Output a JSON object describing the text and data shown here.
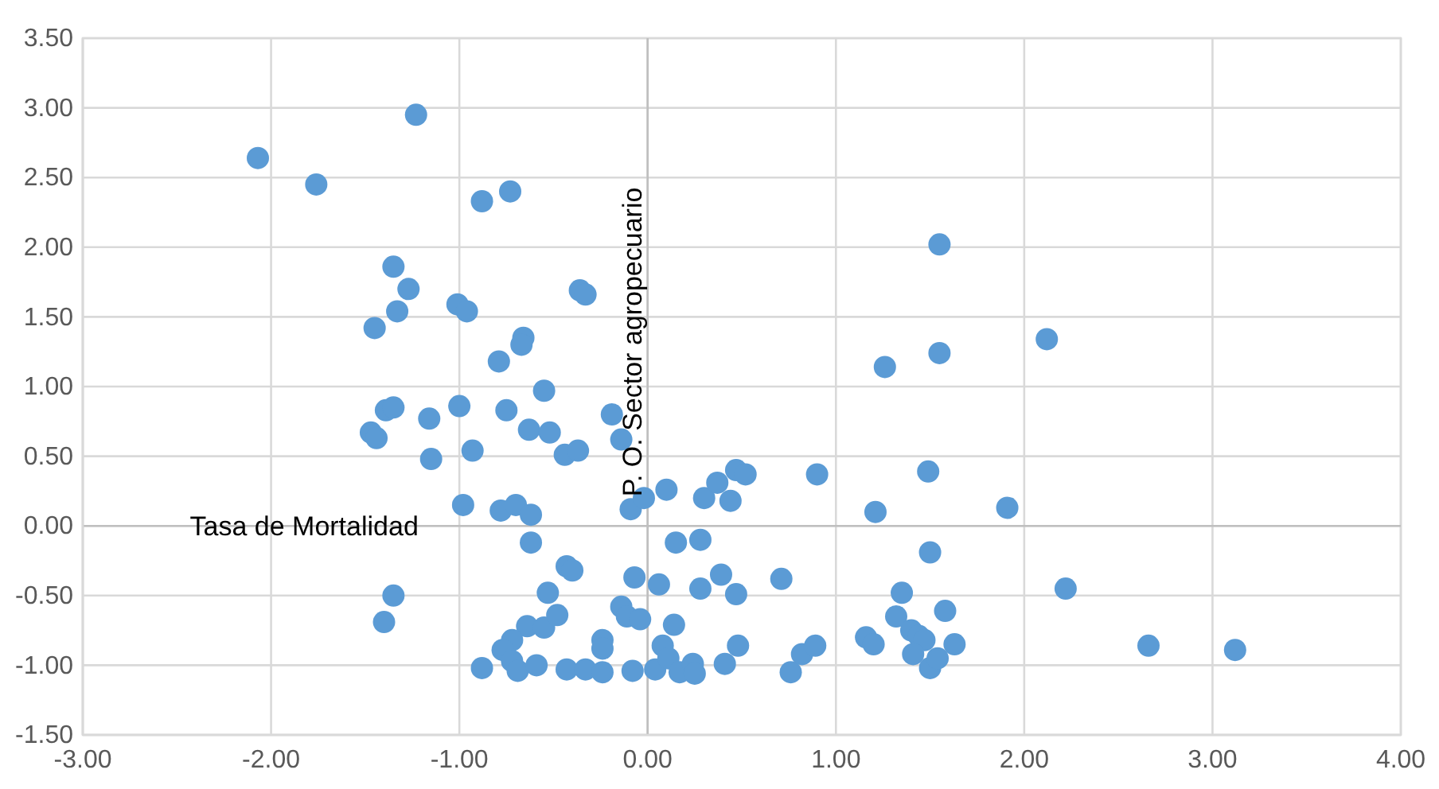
{
  "chart_data": {
    "type": "scatter",
    "xlabel": "Tasa de Mortalidad",
    "ylabel": "P. O. Sector agropecuario",
    "color": "#5b9bd5",
    "marker": "circle",
    "grid": true,
    "xlim": [
      -3,
      4
    ],
    "xticks": [
      {
        "value": -3,
        "label": "-3.00"
      },
      {
        "value": -2,
        "label": "-2.00"
      },
      {
        "value": -1,
        "label": "-1.00"
      },
      {
        "value": 0,
        "label": "0.00"
      },
      {
        "value": 1,
        "label": "1.00"
      },
      {
        "value": 2,
        "label": "2.00"
      },
      {
        "value": 3,
        "label": "3.00"
      },
      {
        "value": 4,
        "label": "4.00"
      }
    ],
    "ylim": [
      -1.5,
      3.5
    ],
    "yticks": [
      {
        "value": -1.5,
        "label": "-1.50"
      },
      {
        "value": -1,
        "label": "-1.00"
      },
      {
        "value": -0.5,
        "label": "-0.50"
      },
      {
        "value": 0,
        "label": "0.00"
      },
      {
        "value": 0.5,
        "label": "0.50"
      },
      {
        "value": 1,
        "label": "1.00"
      },
      {
        "value": 1.5,
        "label": "1.50"
      },
      {
        "value": 2,
        "label": "2.00"
      },
      {
        "value": 2.5,
        "label": "2.50"
      },
      {
        "value": 3,
        "label": "3.00"
      },
      {
        "value": 3.5,
        "label": "3.50"
      }
    ],
    "x": [
      -2.07,
      -1.76,
      -1.23,
      -0.88,
      -0.73,
      -1.35,
      -1.27,
      -1.33,
      -1.45,
      -1.01,
      -0.96,
      -0.66,
      -0.67,
      -0.79,
      -0.55,
      -0.36,
      -0.33,
      1.55,
      1.26,
      1.55,
      2.12,
      -1.39,
      -1.35,
      -1.16,
      -1.0,
      -0.75,
      -0.63,
      -0.52,
      -1.47,
      -1.44,
      -1.15,
      -0.93,
      -0.98,
      -0.78,
      -0.7,
      -0.62,
      -0.62,
      -1.35,
      -1.4,
      -0.44,
      -0.37,
      -0.14,
      -0.19,
      -0.09,
      -0.02,
      0.1,
      0.3,
      0.37,
      0.44,
      0.47,
      0.52,
      0.9,
      1.21,
      1.49,
      1.5,
      0.15,
      0.28,
      -0.43,
      -0.4,
      0.06,
      -0.07,
      0.28,
      0.39,
      0.47,
      0.71,
      -0.53,
      -0.14,
      -0.11,
      -0.04,
      0.14,
      -0.64,
      -0.55,
      -0.48,
      -0.72,
      -0.77,
      -0.72,
      -0.69,
      -0.59,
      -0.88,
      -0.43,
      -0.24,
      -0.24,
      -0.33,
      -0.24,
      -0.08,
      0.04,
      0.08,
      0.11,
      0.17,
      0.24,
      0.25,
      0.41,
      0.48,
      0.76,
      0.82,
      0.89,
      1.16,
      1.2,
      1.35,
      1.32,
      1.4,
      1.44,
      1.47,
      1.41,
      1.5,
      1.54,
      1.58,
      1.63,
      1.91,
      2.22,
      2.66,
      3.12
    ],
    "values": [
      2.64,
      2.45,
      2.95,
      2.33,
      2.4,
      1.86,
      1.7,
      1.54,
      1.42,
      1.59,
      1.54,
      1.35,
      1.3,
      1.18,
      0.97,
      1.69,
      1.66,
      2.02,
      1.14,
      1.24,
      1.34,
      0.83,
      0.85,
      0.77,
      0.86,
      0.83,
      0.69,
      0.67,
      0.67,
      0.63,
      0.48,
      0.54,
      0.15,
      0.11,
      0.15,
      0.08,
      -0.12,
      -0.5,
      -0.69,
      0.51,
      0.54,
      0.62,
      0.8,
      0.12,
      0.2,
      0.26,
      0.2,
      0.31,
      0.18,
      0.4,
      0.37,
      0.37,
      0.1,
      0.39,
      -0.19,
      -0.12,
      -0.1,
      -0.29,
      -0.32,
      -0.42,
      -0.37,
      -0.45,
      -0.35,
      -0.49,
      -0.38,
      -0.48,
      -0.58,
      -0.65,
      -0.67,
      -0.71,
      -0.72,
      -0.73,
      -0.64,
      -0.82,
      -0.89,
      -0.97,
      -1.04,
      -1.0,
      -1.02,
      -1.03,
      -0.82,
      -0.88,
      -1.03,
      -1.05,
      -1.04,
      -1.03,
      -0.86,
      -0.95,
      -1.05,
      -0.99,
      -1.06,
      -0.99,
      -0.86,
      -1.05,
      -0.92,
      -0.86,
      -0.8,
      -0.85,
      -0.48,
      -0.65,
      -0.75,
      -0.79,
      -0.82,
      -0.92,
      -1.02,
      -0.95,
      -0.61,
      -0.85,
      0.13,
      -0.45,
      -0.86,
      -0.89
    ]
  }
}
